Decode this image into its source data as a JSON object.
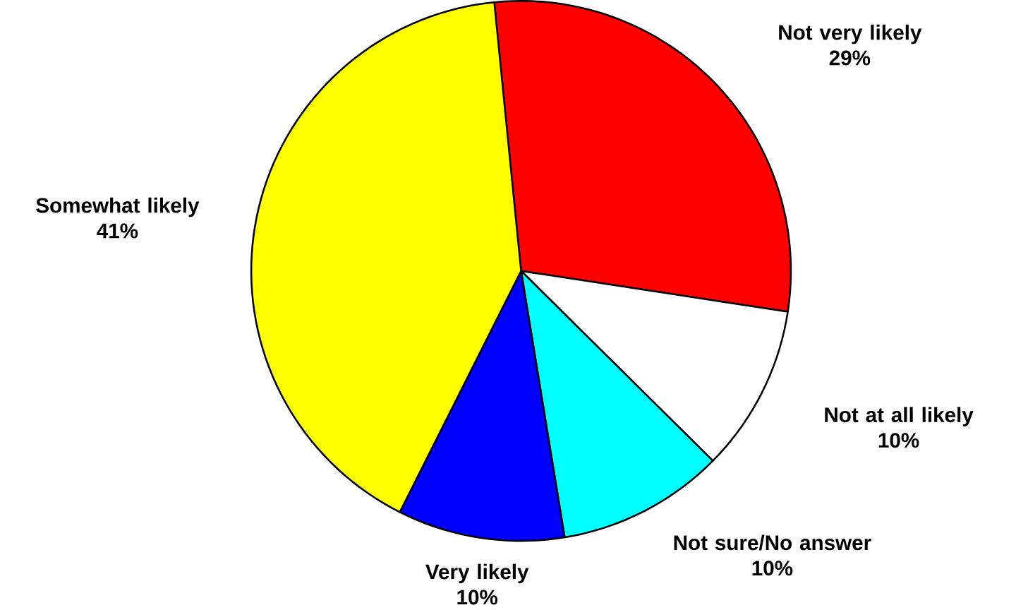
{
  "chart_data": {
    "type": "pie",
    "categories": [
      "Not very likely",
      "Not at all likely",
      "Not sure/No answer",
      "Very likely",
      "Somewhat likely"
    ],
    "values": [
      29,
      10,
      10,
      10,
      41
    ],
    "colors": [
      "#ff0000",
      "#ffffff",
      "#00ffff",
      "#0000ff",
      "#ffff00"
    ],
    "value_labels": [
      "29%",
      "10%",
      "10%",
      "10%",
      "41%"
    ]
  }
}
